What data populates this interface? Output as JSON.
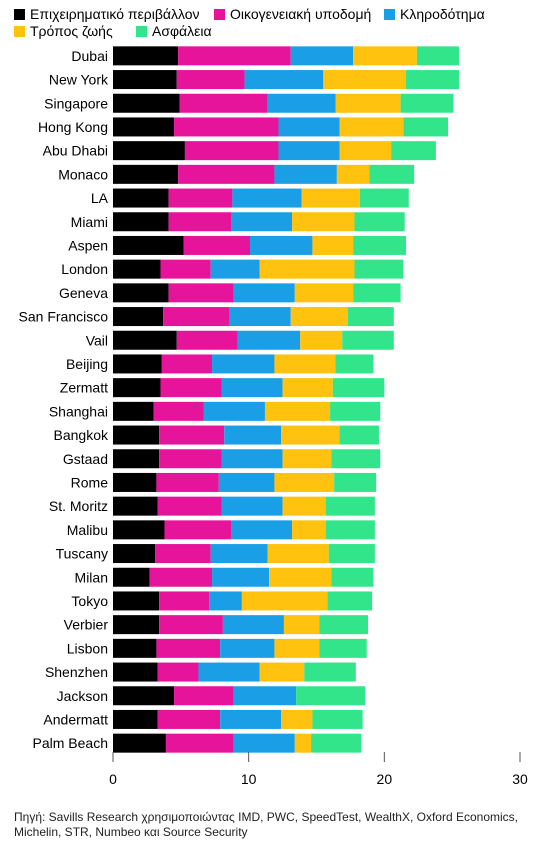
{
  "legend": [
    {
      "label": "Επιχειρηματικό περιβάλλον",
      "color": "#000000"
    },
    {
      "label": "Οικογενειακή υποδομή",
      "color": "#E5149A"
    },
    {
      "label": "Κληροδότημα",
      "color": "#1A9FE6"
    },
    {
      "label": "Τρόπος ζωής",
      "color": "#FFC20E"
    },
    {
      "label": "Ασφάλεια",
      "color": "#33E58A"
    }
  ],
  "source": "Πηγή: Savills Research χρησιμοποιώντας IMD, PWC, SpeedTest, WealthX, Oxford Economics, Michelin, STR, Numbeo και Source Security",
  "chart_data": {
    "type": "bar",
    "orientation": "horizontal",
    "stacked": true,
    "xlim": [
      0,
      30
    ],
    "xticks": [
      0,
      10,
      20,
      30
    ],
    "grid": false,
    "legend_position": "top",
    "categories": [
      "Dubai",
      "New York",
      "Singapore",
      "Hong Kong",
      "Abu Dhabi",
      "Monaco",
      "LA",
      "Miami",
      "Aspen",
      "London",
      "Geneva",
      "San Francisco",
      "Vail",
      "Beijing",
      "Zermatt",
      "Shanghai",
      "Bangkok",
      "Gstaad",
      "Rome",
      "St. Moritz",
      "Malibu",
      "Tuscany",
      "Milan",
      "Tokyo",
      "Verbier",
      "Lisbon",
      "Shenzhen",
      "Jackson",
      "Andermatt",
      "Palm Beach"
    ],
    "series": [
      {
        "name": "Επιχειρηματικό περιβάλλον",
        "color": "#000000",
        "values": [
          4.8,
          4.7,
          4.9,
          4.5,
          5.3,
          4.8,
          4.1,
          4.1,
          5.2,
          3.5,
          4.1,
          3.7,
          4.7,
          3.6,
          3.5,
          3.0,
          3.4,
          3.4,
          3.2,
          3.3,
          3.8,
          3.1,
          2.7,
          3.4,
          3.4,
          3.2,
          3.3,
          4.5,
          3.3,
          3.9
        ]
      },
      {
        "name": "Οικογενειακή υποδομή",
        "color": "#E5149A",
        "values": [
          8.3,
          5.0,
          6.5,
          7.7,
          6.9,
          7.1,
          4.7,
          4.6,
          4.9,
          3.7,
          4.8,
          4.9,
          4.5,
          3.7,
          4.5,
          3.7,
          4.8,
          4.6,
          4.6,
          4.7,
          4.9,
          4.1,
          4.6,
          3.7,
          4.7,
          4.7,
          3.0,
          4.4,
          4.6,
          5.0
        ]
      },
      {
        "name": "Κληροδότημα",
        "color": "#1A9FE6",
        "values": [
          4.6,
          5.8,
          5.0,
          4.5,
          4.5,
          4.6,
          5.1,
          4.5,
          4.6,
          3.6,
          4.5,
          4.5,
          4.6,
          4.6,
          4.5,
          4.5,
          4.2,
          4.5,
          4.1,
          4.5,
          4.5,
          4.2,
          4.2,
          2.4,
          4.5,
          4.0,
          4.5,
          4.6,
          4.5,
          4.5
        ]
      },
      {
        "name": "Τρόπος ζωής",
        "color": "#FFC20E",
        "values": [
          4.7,
          6.1,
          4.8,
          4.7,
          3.8,
          2.4,
          4.3,
          4.6,
          3.0,
          7.0,
          4.3,
          4.2,
          3.1,
          4.5,
          3.7,
          4.8,
          4.3,
          3.6,
          4.4,
          3.2,
          2.5,
          4.5,
          4.6,
          6.3,
          2.6,
          3.3,
          3.3,
          0.0,
          2.3,
          1.2
        ]
      },
      {
        "name": "Ασφάλεια",
        "color": "#33E58A",
        "values": [
          3.1,
          3.9,
          3.9,
          3.3,
          3.3,
          3.3,
          3.6,
          3.7,
          3.9,
          3.6,
          3.5,
          3.4,
          3.8,
          2.8,
          3.8,
          3.7,
          2.9,
          3.6,
          3.1,
          3.6,
          3.6,
          3.4,
          3.1,
          3.3,
          3.6,
          3.5,
          3.8,
          5.1,
          3.7,
          3.7
        ]
      }
    ]
  }
}
